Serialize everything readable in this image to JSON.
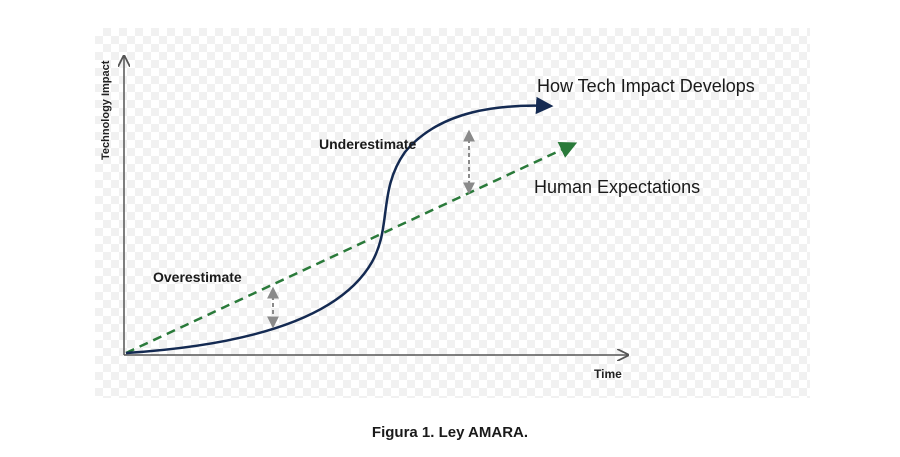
{
  "diagram": {
    "y_axis_label": "Technology Impact",
    "x_axis_label": "Time",
    "curve_label": "How Tech Impact Develops",
    "line_label": "Human Expectations",
    "gap_high_label": "Underestimate",
    "gap_low_label": "Overestimate"
  },
  "caption": "Figura 1. Ley AMARA.",
  "colors": {
    "curve": "#142a52",
    "expectation_line": "#2a7a3a",
    "axis": "#555555",
    "gap_arrow": "#8a8a8a"
  }
}
